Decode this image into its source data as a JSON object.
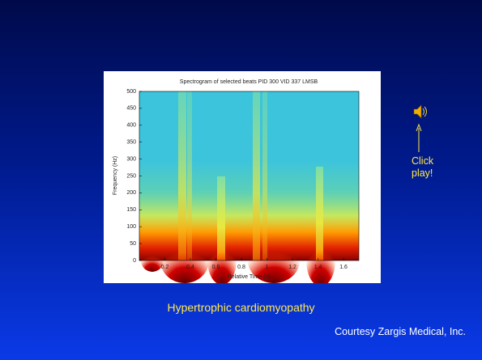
{
  "slide": {
    "hint": "Click play!",
    "caption": "Hypertrophic cardiomyopathy",
    "credit": "Courtesy Zargis Medical, Inc."
  },
  "figure": {
    "title": "Spectrogram of selected beats PID 300 VID 337 LMSB",
    "x_label": "Relative Time (s)",
    "y_label": "Frequency (Hz)",
    "xlim": [
      0,
      1.72
    ],
    "ylim": [
      0,
      500
    ],
    "xticks": [
      0.2,
      0.4,
      0.6,
      0.8,
      1,
      1.2,
      1.4,
      1.6
    ],
    "yticks": [
      0,
      50,
      100,
      150,
      200,
      250,
      300,
      350,
      400,
      450,
      500
    ]
  }
}
